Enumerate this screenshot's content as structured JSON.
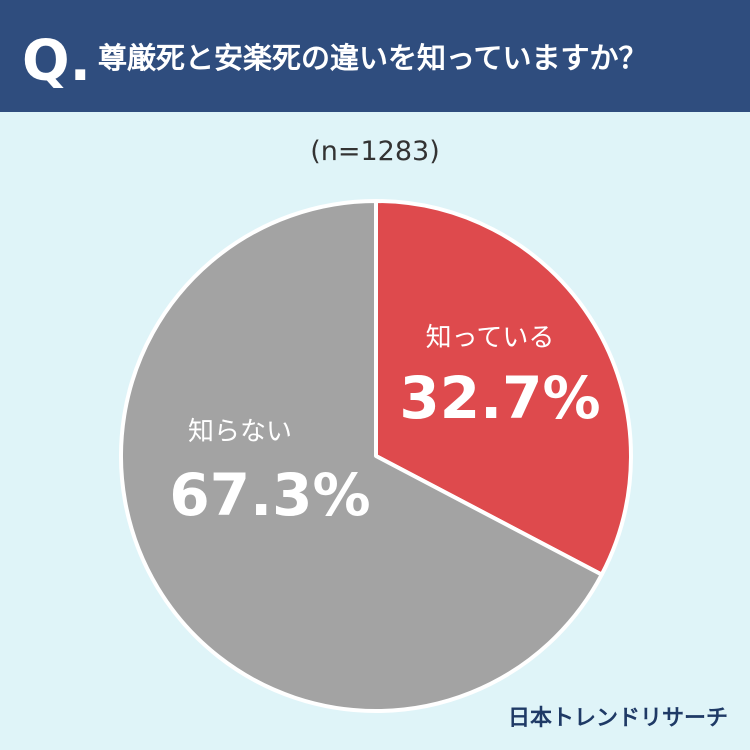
{
  "chart_data": {
    "type": "pie",
    "question_prefix": "Q.",
    "title": "尊厳死と安楽死の違いを知っていますか？",
    "subtitle": "(n=1283)",
    "categories": [
      "知っている",
      "知らない"
    ],
    "values": [
      32.7,
      67.3
    ],
    "value_labels": [
      "32.7%",
      "67.3%"
    ],
    "colors": [
      "#de4a4d",
      "#a3a3a3"
    ],
    "source": "日本トレンドリサーチ"
  }
}
